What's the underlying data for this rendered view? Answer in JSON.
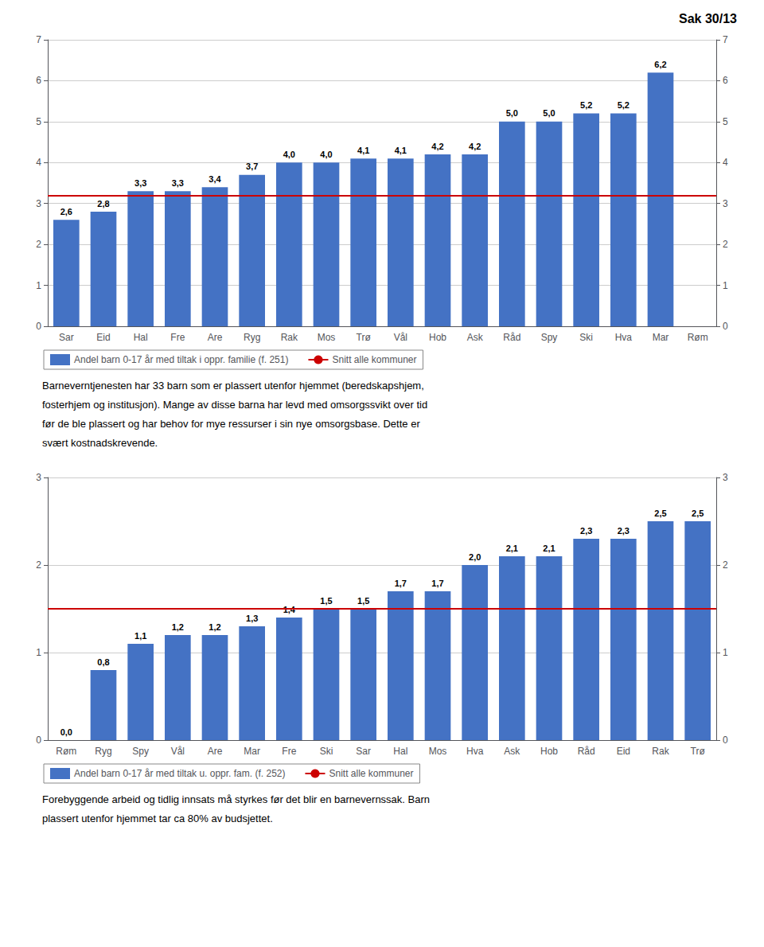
{
  "chart_data": [
    {
      "type": "bar",
      "title": "Sak 30/13",
      "categories": [
        "Sar",
        "Eid",
        "Hal",
        "Fre",
        "Are",
        "Ryg",
        "Rak",
        "Mos",
        "Trø",
        "Vål",
        "Hob",
        "Ask",
        "Råd",
        "Spy",
        "Ski",
        "Hva",
        "Mar",
        "Røm"
      ],
      "series": [
        {
          "name": "Andel barn 0-17 år med tiltak i oppr. familie (f. 251)",
          "type": "bar",
          "color": "#4472C4",
          "values": [
            2.6,
            2.8,
            3.3,
            3.3,
            3.4,
            3.7,
            4.0,
            4.0,
            4.1,
            4.1,
            4.2,
            4.2,
            5.0,
            5.0,
            5.2,
            5.2,
            6.2,
            null
          ],
          "value_labels": [
            "2,6",
            "2,8",
            "3,3",
            "3,3",
            "3,4",
            "3,7",
            "4,0",
            "4,0",
            "4,1",
            "4,1",
            "4,2",
            "4,2",
            "5,0",
            "5,0",
            "5,2",
            "5,2",
            "6,2",
            null
          ]
        },
        {
          "name": "Snitt alle kommuner",
          "type": "hline",
          "color": "#CC0000",
          "value": 3.2
        }
      ],
      "ylim": [
        0,
        7
      ],
      "yticks": [
        0,
        1,
        2,
        3,
        4,
        5,
        6,
        7
      ],
      "y2lim": [
        0,
        7
      ],
      "y2ticks": [
        0,
        1,
        2,
        3,
        4,
        5,
        6,
        7
      ],
      "grid": true,
      "legend": "bottom",
      "data_labels": true,
      "annotations": [
        "Barneverntjenesten har 33 barn som er plassert utenfor hjemmet (beredskapshjem,",
        "fosterhjem og institusjon). Mange av disse barna har levd med omsorgssvikt over tid",
        "før de ble plassert og har behov for mye ressurser i sin nye omsorgsbase. Dette er",
        "svært kostnadskrevende."
      ]
    },
    {
      "type": "bar",
      "categories": [
        "Røm",
        "Ryg",
        "Spy",
        "Vål",
        "Are",
        "Mar",
        "Fre",
        "Ski",
        "Sar",
        "Hal",
        "Mos",
        "Hva",
        "Ask",
        "Hob",
        "Råd",
        "Eid",
        "Rak",
        "Trø"
      ],
      "series": [
        {
          "name": "Andel barn 0-17 år med tiltak u. oppr. fam. (f. 252)",
          "type": "bar",
          "color": "#4472C4",
          "values": [
            0.0,
            0.8,
            1.1,
            1.2,
            1.2,
            1.3,
            1.4,
            1.5,
            1.5,
            1.7,
            1.7,
            2.0,
            2.1,
            2.1,
            2.3,
            2.3,
            2.5,
            2.5
          ],
          "value_labels": [
            "0,0",
            "0,8",
            "1,1",
            "1,2",
            "1,2",
            "1,3",
            "1,4",
            "1,5",
            "1,5",
            "1,7",
            "1,7",
            "2,0",
            "2,1",
            "2,1",
            "2,3",
            "2,3",
            "2,5",
            "2,5"
          ]
        },
        {
          "name": "Snitt alle kommuner",
          "type": "hline",
          "color": "#CC0000",
          "value": 1.5
        }
      ],
      "ylim": [
        0,
        3
      ],
      "yticks": [
        0,
        1,
        2,
        3
      ],
      "y2lim": [
        0,
        3
      ],
      "y2ticks": [
        0,
        1,
        2,
        3
      ],
      "grid": true,
      "legend": "bottom",
      "data_labels": true,
      "annotations": [
        "Forebyggende arbeid og tidlig innsats må styrkes før det blir en barnevernssak. Barn",
        "plassert utenfor hjemmet tar ca 80% av budsjettet."
      ]
    }
  ]
}
